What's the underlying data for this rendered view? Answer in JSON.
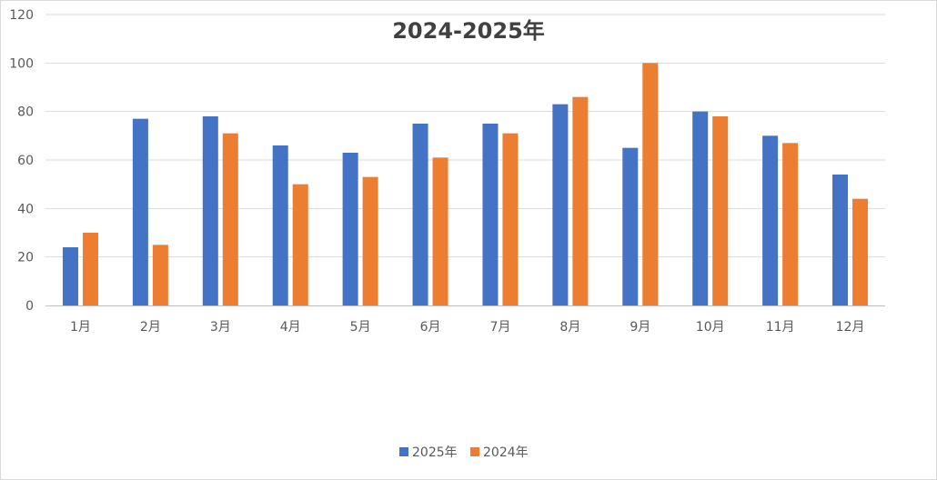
{
  "chart_data": {
    "type": "bar",
    "title": "2024-2025年",
    "xlabel": "",
    "ylabel": "",
    "categories": [
      "1月",
      "2月",
      "3月",
      "4月",
      "5月",
      "6月",
      "7月",
      "8月",
      "9月",
      "10月",
      "11月",
      "12月"
    ],
    "series": [
      {
        "name": "2025年",
        "color": "#4472c4",
        "values": [
          24,
          77,
          78,
          66,
          63,
          75,
          75,
          83,
          65,
          80,
          70,
          54
        ]
      },
      {
        "name": "2024年",
        "color": "#ed7d31",
        "values": [
          30,
          25,
          71,
          50,
          53,
          61,
          71,
          86,
          100,
          78,
          67,
          44
        ]
      }
    ],
    "ylim": [
      0,
      120
    ],
    "yticks": [
      0,
      20,
      40,
      60,
      80,
      100,
      120
    ],
    "grid": true,
    "legend_position": "bottom"
  }
}
